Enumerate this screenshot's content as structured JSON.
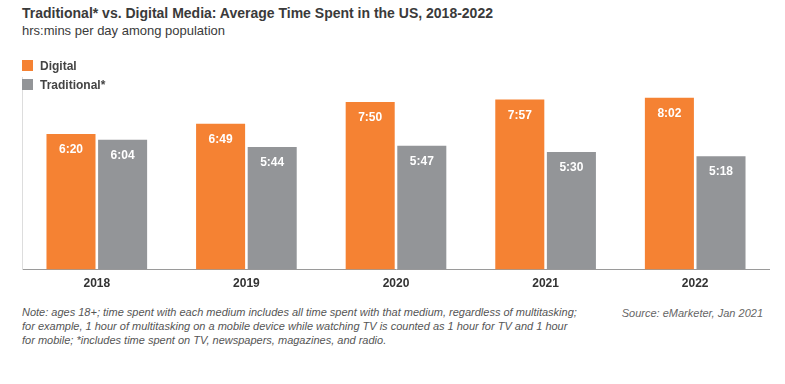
{
  "chart_data": {
    "type": "bar",
    "title": "Traditional* vs. Digital Media: Average Time Spent in the US, 2018-2022",
    "subtitle": "hrs:mins per day among population",
    "categories": [
      "2018",
      "2019",
      "2020",
      "2021",
      "2022"
    ],
    "series": [
      {
        "name": "Digital",
        "color": "#f58233",
        "values": [
          380,
          409,
          470,
          477,
          482
        ],
        "value_labels": [
          "6:20",
          "6:49",
          "7:50",
          "7:57",
          "8:02"
        ]
      },
      {
        "name": "Traditional*",
        "color": "#939598",
        "values": [
          364,
          344,
          347,
          330,
          318
        ],
        "value_labels": [
          "6:04",
          "5:44",
          "5:47",
          "5:30",
          "5:18"
        ]
      }
    ],
    "ylim": [
      0,
      540
    ],
    "yticks": [],
    "tick_labels": "x",
    "grid": false,
    "legend": "upper left",
    "data_labels": true,
    "note": "Note: ages 18+; time spent with each medium includes all time spent with that medium, regardless of multitasking; for example, 1 hour of multitasking on a mobile device while watching TV is counted as 1 hour for TV and 1 hour for mobile; *includes time spent on TV, newspapers, magazines, and radio.",
    "source": "Source: eMarketer, Jan 2021"
  }
}
